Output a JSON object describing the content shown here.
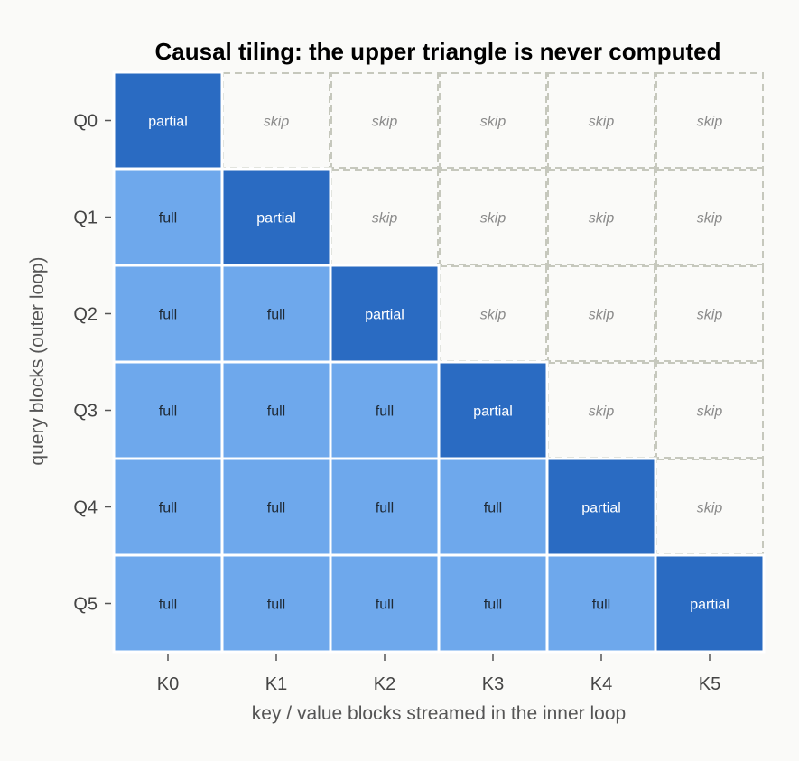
{
  "chart_data": {
    "type": "heatmap",
    "title": "Causal tiling: the upper triangle is never computed",
    "xlabel": "key / value blocks streamed in the inner loop",
    "ylabel": "query blocks (outer loop)",
    "x_categories": [
      "K0",
      "K1",
      "K2",
      "K3",
      "K4",
      "K5"
    ],
    "y_categories": [
      "Q0",
      "Q1",
      "Q2",
      "Q3",
      "Q4",
      "Q5"
    ],
    "cells": [
      [
        "partial",
        "skip",
        "skip",
        "skip",
        "skip",
        "skip"
      ],
      [
        "full",
        "partial",
        "skip",
        "skip",
        "skip",
        "skip"
      ],
      [
        "full",
        "full",
        "partial",
        "skip",
        "skip",
        "skip"
      ],
      [
        "full",
        "full",
        "full",
        "partial",
        "skip",
        "skip"
      ],
      [
        "full",
        "full",
        "full",
        "full",
        "partial",
        "skip"
      ],
      [
        "full",
        "full",
        "full",
        "full",
        "full",
        "partial"
      ]
    ],
    "colors": {
      "full": "#6ea8ec",
      "partial": "#2a6bc2",
      "skip_border": "#c6c8bd",
      "full_text": "#1f2a36",
      "partial_text": "#ffffff",
      "skip_text": "#8a8a8a"
    }
  }
}
